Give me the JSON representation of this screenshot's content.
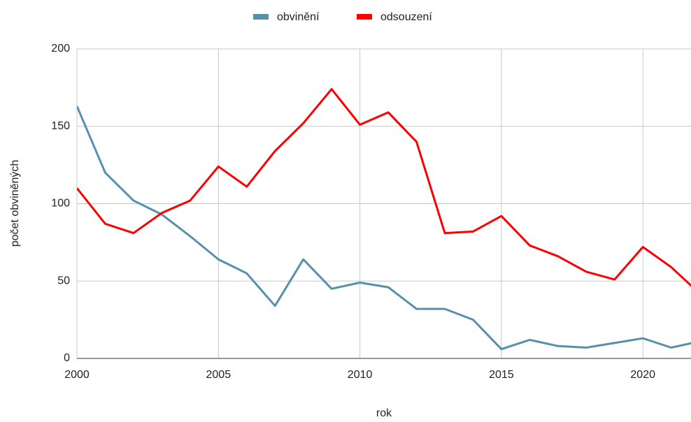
{
  "chart_data": {
    "type": "line",
    "xlabel": "rok",
    "ylabel": "počet obviněných",
    "x": [
      2000,
      2001,
      2002,
      2003,
      2004,
      2005,
      2006,
      2007,
      2008,
      2009,
      2010,
      2011,
      2012,
      2013,
      2014,
      2015,
      2016,
      2017,
      2018,
      2019,
      2020,
      2021,
      2022
    ],
    "series": [
      {
        "name": "obvinění",
        "color": "#5691ac",
        "values": [
          163,
          120,
          102,
          93,
          79,
          64,
          55,
          34,
          64,
          45,
          49,
          46,
          32,
          32,
          25,
          6,
          12,
          8,
          7,
          10,
          13,
          7,
          11
        ]
      },
      {
        "name": "odsouzení",
        "color": "#ff0000",
        "values": [
          110,
          87,
          81,
          94,
          102,
          124,
          111,
          134,
          152,
          174,
          151,
          159,
          140,
          81,
          82,
          92,
          73,
          66,
          56,
          51,
          72,
          59,
          42
        ]
      }
    ],
    "xlim": [
      2000,
      2021.7
    ],
    "xticks": [
      2000,
      2005,
      2010,
      2015,
      2020
    ],
    "ylim": [
      0,
      200
    ],
    "yticks": [
      0,
      50,
      100,
      150,
      200
    ],
    "grid": true,
    "legend": "top"
  }
}
